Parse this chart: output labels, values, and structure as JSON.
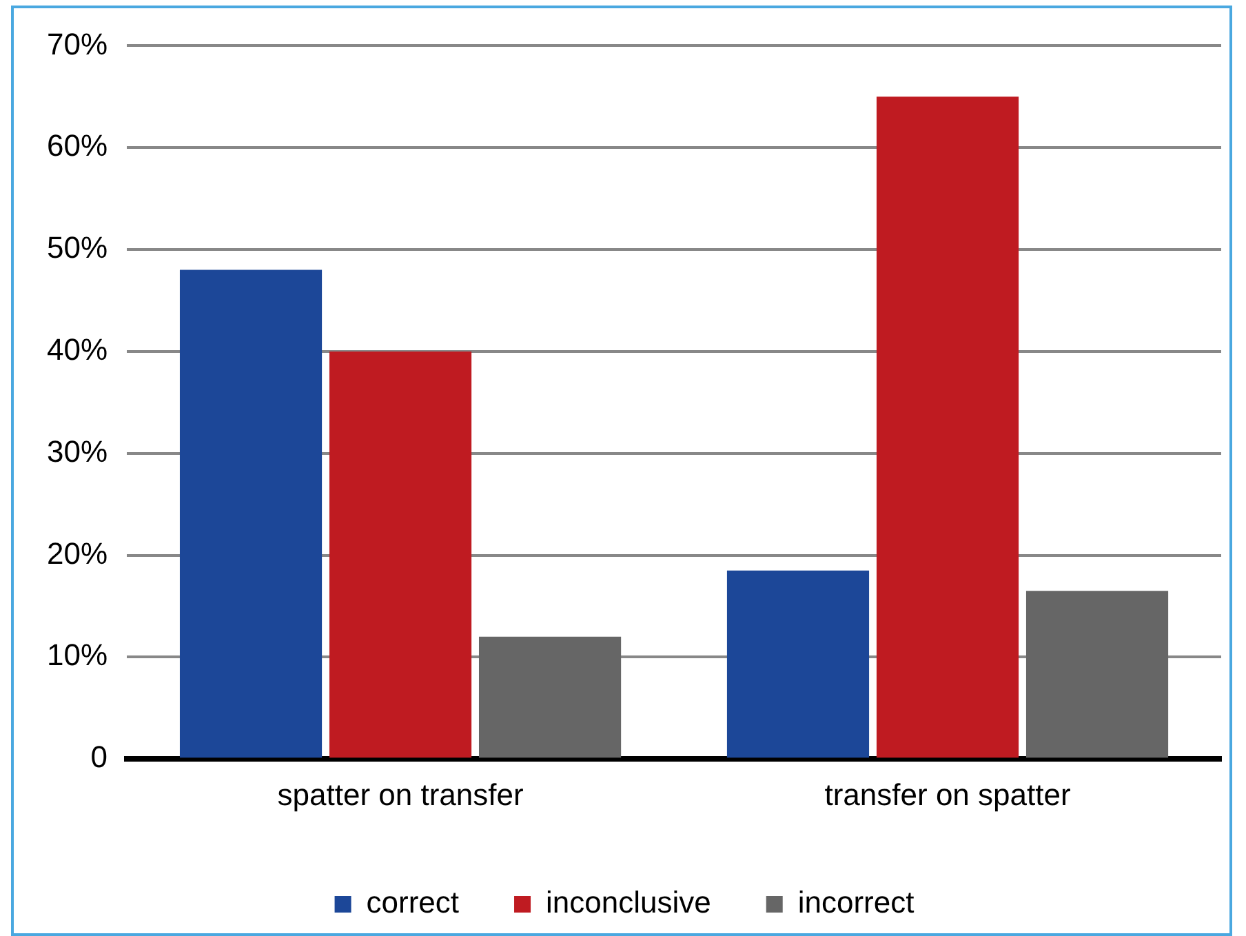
{
  "chart_data": {
    "type": "bar",
    "categories": [
      "spatter on transfer",
      "transfer on spatter"
    ],
    "series": [
      {
        "name": "correct",
        "color": "#1c4798",
        "values": [
          48,
          18.5
        ]
      },
      {
        "name": "inconclusive",
        "color": "#bf1b21",
        "values": [
          40,
          65
        ]
      },
      {
        "name": "incorrect",
        "color": "#666666",
        "values": [
          12,
          16.5
        ]
      }
    ],
    "ylim": [
      0,
      70
    ],
    "yticks": [
      {
        "value": 0,
        "label": "0"
      },
      {
        "value": 10,
        "label": "10%"
      },
      {
        "value": 20,
        "label": "20%"
      },
      {
        "value": 30,
        "label": "30%"
      },
      {
        "value": 40,
        "label": "40%"
      },
      {
        "value": 50,
        "label": "50%"
      },
      {
        "value": 60,
        "label": "60%"
      },
      {
        "value": 70,
        "label": "70%"
      }
    ],
    "grid": "y",
    "legend": "bottom"
  }
}
